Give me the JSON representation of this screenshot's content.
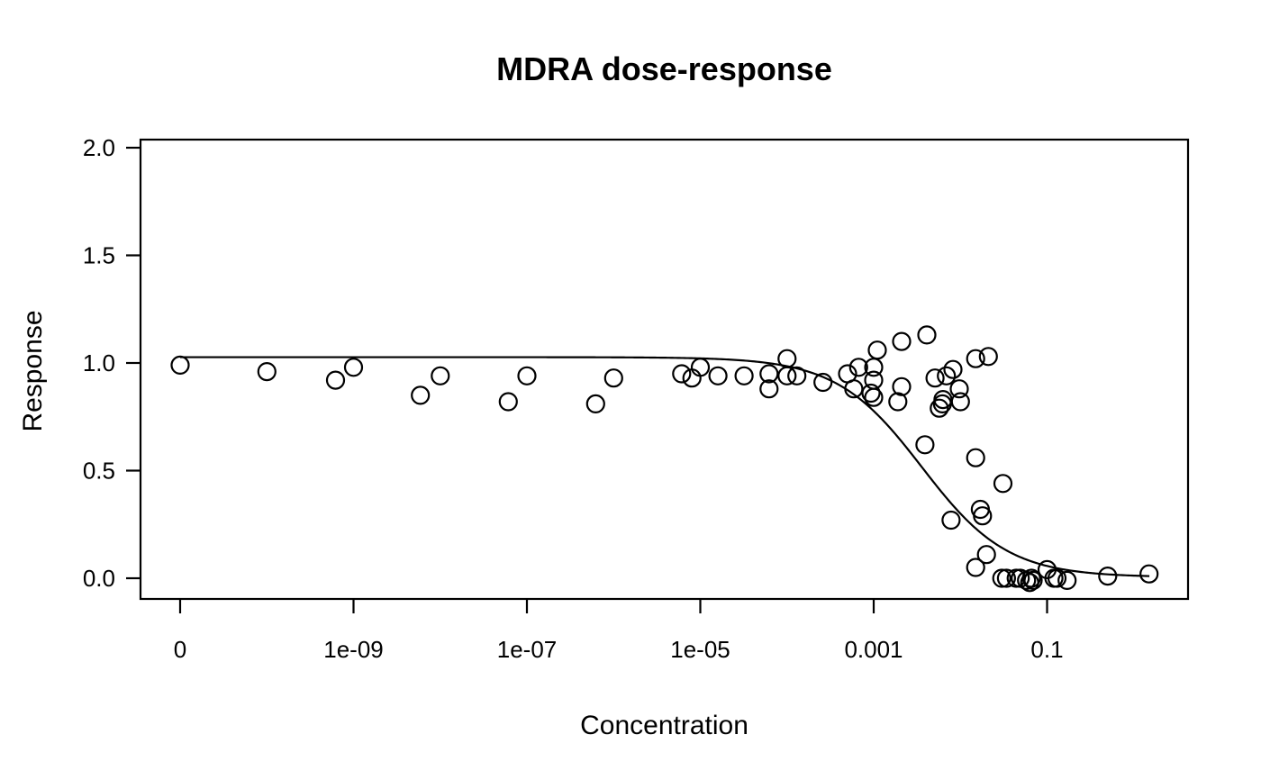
{
  "page": {
    "background": "#ffffff",
    "foreground": "#000000"
  },
  "chart_data": {
    "type": "scatter",
    "title": "MDRA dose-response",
    "xlabel": "Concentration",
    "ylabel": "Response",
    "xscale": "log10",
    "grid": false,
    "legend": null,
    "ylim": [
      0.0,
      2.0
    ],
    "xlim_log10": [
      -11.45,
      0.63
    ],
    "zero_surrogate_log10": -11,
    "x_ticks": [
      {
        "label": "0",
        "log10": -11
      },
      {
        "label": "1e-09",
        "log10": -9
      },
      {
        "label": "1e-07",
        "log10": -7
      },
      {
        "label": "1e-05",
        "log10": -5
      },
      {
        "label": "0.001",
        "log10": -3
      },
      {
        "label": "0.1",
        "log10": -1
      }
    ],
    "y_ticks": [
      {
        "label": "0.0",
        "value": 0.0
      },
      {
        "label": "0.5",
        "value": 0.5
      },
      {
        "label": "1.0",
        "value": 1.0
      },
      {
        "label": "1.5",
        "value": 1.5
      },
      {
        "label": "2.0",
        "value": 2.0
      }
    ],
    "marker": {
      "shape": "open-circle",
      "radius_px": 9.5,
      "stroke": "#000000",
      "stroke_width": 2.2,
      "fill": "none"
    },
    "fit_curve": {
      "model": "4PL",
      "top": 1.027,
      "bottom": 0.005,
      "ec50": 0.0036,
      "hill": 0.88,
      "log10_range": [
        -11,
        0.18
      ],
      "color": "#000000",
      "width": 2.2
    },
    "points": [
      [
        0,
        0.99
      ],
      [
        1e-10,
        0.96
      ],
      [
        6.2e-10,
        0.92
      ],
      [
        1e-09,
        0.98
      ],
      [
        5.9e-09,
        0.85
      ],
      [
        1e-08,
        0.94
      ],
      [
        6.1e-08,
        0.82
      ],
      [
        1e-07,
        0.94
      ],
      [
        6.2e-07,
        0.81
      ],
      [
        1e-06,
        0.93
      ],
      [
        6.1e-06,
        0.95
      ],
      [
        8e-06,
        0.93
      ],
      [
        1e-05,
        0.98
      ],
      [
        1.6e-05,
        0.94
      ],
      [
        3.2e-05,
        0.94
      ],
      [
        6.2e-05,
        0.88
      ],
      [
        6.2e-05,
        0.95
      ],
      [
        0.0001,
        1.02
      ],
      [
        0.0001,
        0.94
      ],
      [
        0.00013,
        0.94
      ],
      [
        0.00026,
        0.91
      ],
      [
        0.0005,
        0.95
      ],
      [
        0.00059,
        0.88
      ],
      [
        0.00067,
        0.98
      ],
      [
        0.00093,
        0.86
      ],
      [
        0.001,
        0.98
      ],
      [
        0.001,
        0.92
      ],
      [
        0.001,
        0.84
      ],
      [
        0.0011,
        1.06
      ],
      [
        0.0019,
        0.82
      ],
      [
        0.0021,
        1.1
      ],
      [
        0.0021,
        0.89
      ],
      [
        0.0039,
        0.62
      ],
      [
        0.0041,
        1.13
      ],
      [
        0.0051,
        0.93
      ],
      [
        0.0057,
        0.79
      ],
      [
        0.0062,
        0.81
      ],
      [
        0.0063,
        0.83
      ],
      [
        0.0069,
        0.94
      ],
      [
        0.0078,
        0.27
      ],
      [
        0.0082,
        0.97
      ],
      [
        0.0097,
        0.88
      ],
      [
        0.01,
        0.82
      ],
      [
        0.015,
        1.02
      ],
      [
        0.015,
        0.56
      ],
      [
        0.015,
        0.05
      ],
      [
        0.017,
        0.32
      ],
      [
        0.018,
        0.29
      ],
      [
        0.02,
        0.11
      ],
      [
        0.021,
        1.03
      ],
      [
        0.03,
        0.0
      ],
      [
        0.031,
        0.44
      ],
      [
        0.034,
        0.0
      ],
      [
        0.044,
        0.0
      ],
      [
        0.049,
        0.0
      ],
      [
        0.058,
        -0.01
      ],
      [
        0.063,
        -0.02
      ],
      [
        0.066,
        0.0
      ],
      [
        0.069,
        -0.01
      ],
      [
        0.1,
        0.04
      ],
      [
        0.12,
        0.0
      ],
      [
        0.13,
        0.0
      ],
      [
        0.17,
        -0.01
      ],
      [
        0.5,
        0.01
      ],
      [
        1.5,
        0.02
      ]
    ]
  }
}
